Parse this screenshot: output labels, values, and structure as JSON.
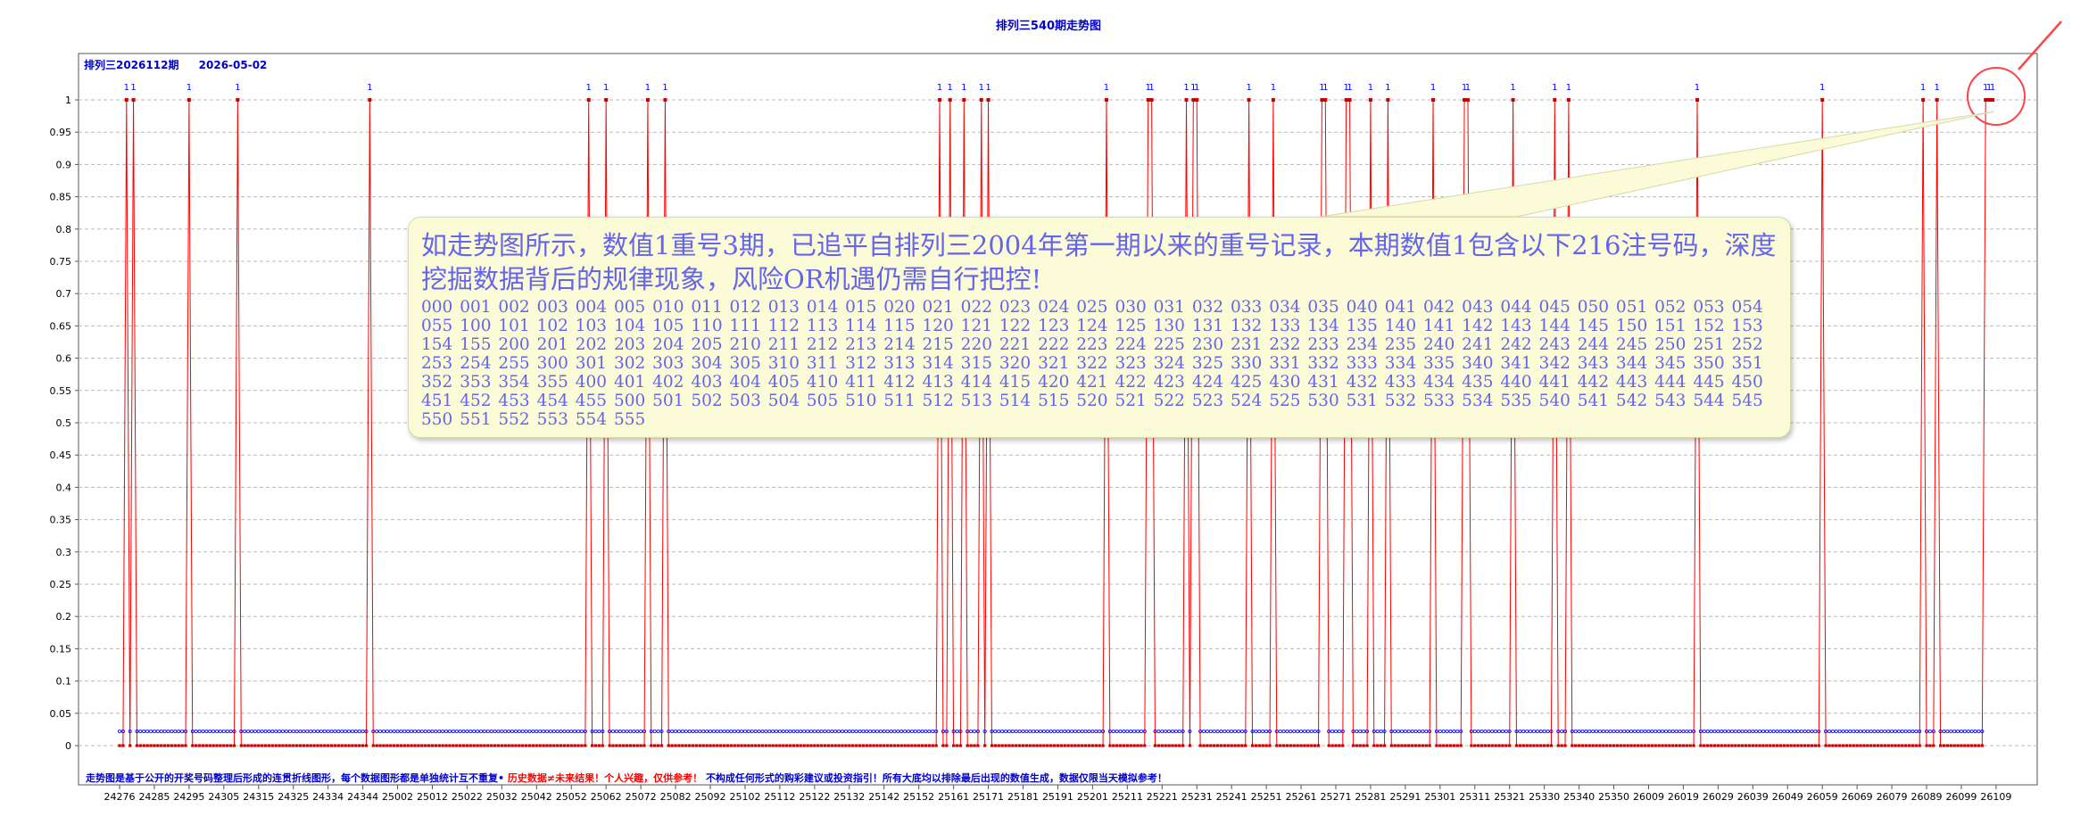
{
  "page": {
    "title": "排列三540期走势图",
    "issue": "排列三2026112期",
    "date": "2026-05-02"
  },
  "annotation": {
    "lead": "如走势图所示，数值1重号3期，已追平自排列三2004年第一期以来的重号记录，本期数值1包含以下216注号码，深度挖掘数据背后的规律现象，风险OR机遇仍需自行把控!",
    "codes": "000 001 002 003 004 005 010 011 012 013 014 015 020 021 022 023 024 025 030 031 032 033 034 035 040 041 042 043 044 045 050 051 052 053 054 055 100 101 102 103 104 105 110 111 112 113 114 115 120 121 122 123 124 125 130 131 132 133 134 135 140 141 142 143 144 145 150 151 152 153 154 155 200 201 202 203 204 205 210 211 212 213 214 215 220 221 222 223 224 225 230 231 232 233 234 235 240 241 242 243 244 245 250 251 252 253 254 255 300 301 302 303 304 305 310 311 312 313 314 315 320 321 322 323 324 325 330 331 332 333 334 335 340 341 342 343 344 345 350 351 352 353 354 355 400 401 402 403 404 405 410 411 412 413 414 415 420 421 422 423 424 425 430 431 432 433 434 435 440 441 442 443 444 445 450 451 452 453 454 455 500 501 502 503 504 505 510 511 512 513 514 515 520 521 522 523 524 525 530 531 532 533 534 535 540 541 542 543 544 545 550 551 552 553 554 555"
  },
  "footer": {
    "part1": "走势图是基于公开的开奖号码整理后形成的连贯折线图形，每个数据图形都是单独统计互不重复•",
    "part2": "历史数据≠未来结果！个人兴趣，仅供参考！",
    "part3": "不构成任何形式的购彩建议或投资指引！所有大底均以排除最后出现的数值生成，数据仅限当天模拟参考！"
  },
  "colors": {
    "line": "#ff0000",
    "marker_one": "#cc0000",
    "marker_zero": "#0000ff",
    "axis_text": "#000000",
    "highlight": "#ff4444"
  },
  "chart_data": {
    "type": "line",
    "title": "排列三540期走势图",
    "n_points": 540,
    "ylim": [
      0,
      1
    ],
    "yticks": [
      "0",
      "0.05",
      "0.1",
      "0.15",
      "0.2",
      "0.25",
      "0.3",
      "0.35",
      "0.4",
      "0.45",
      "0.5",
      "0.55",
      "0.6",
      "0.65",
      "0.7",
      "0.75",
      "0.8",
      "0.85",
      "0.9",
      "0.95",
      "1"
    ],
    "x_tick_labels": [
      "24276",
      "24285",
      "24295",
      "24305",
      "24315",
      "24325",
      "24334",
      "24344",
      "25002",
      "25012",
      "25022",
      "25032",
      "25042",
      "25052",
      "25062",
      "25072",
      "25082",
      "25092",
      "25102",
      "25112",
      "25122",
      "25132",
      "25142",
      "25152",
      "25161",
      "25171",
      "25181",
      "25191",
      "25201",
      "25211",
      "25221",
      "25231",
      "25241",
      "25251",
      "25261",
      "25271",
      "25281",
      "25291",
      "25301",
      "25311",
      "25321",
      "25330",
      "25340",
      "25350",
      "26009",
      "26019",
      "26029",
      "26039",
      "26049",
      "26059",
      "26069",
      "26079",
      "26089",
      "26099",
      "26109"
    ],
    "one_indices": [
      2,
      4,
      20,
      34,
      72,
      135,
      140,
      152,
      157,
      236,
      239,
      243,
      248,
      250,
      284,
      296,
      297,
      307,
      309,
      310,
      325,
      332,
      346,
      347,
      353,
      354,
      360,
      365,
      378,
      387,
      388,
      401,
      413,
      417,
      454,
      490,
      519,
      523,
      537,
      538,
      539
    ],
    "grid": true,
    "point_labels": "1"
  }
}
